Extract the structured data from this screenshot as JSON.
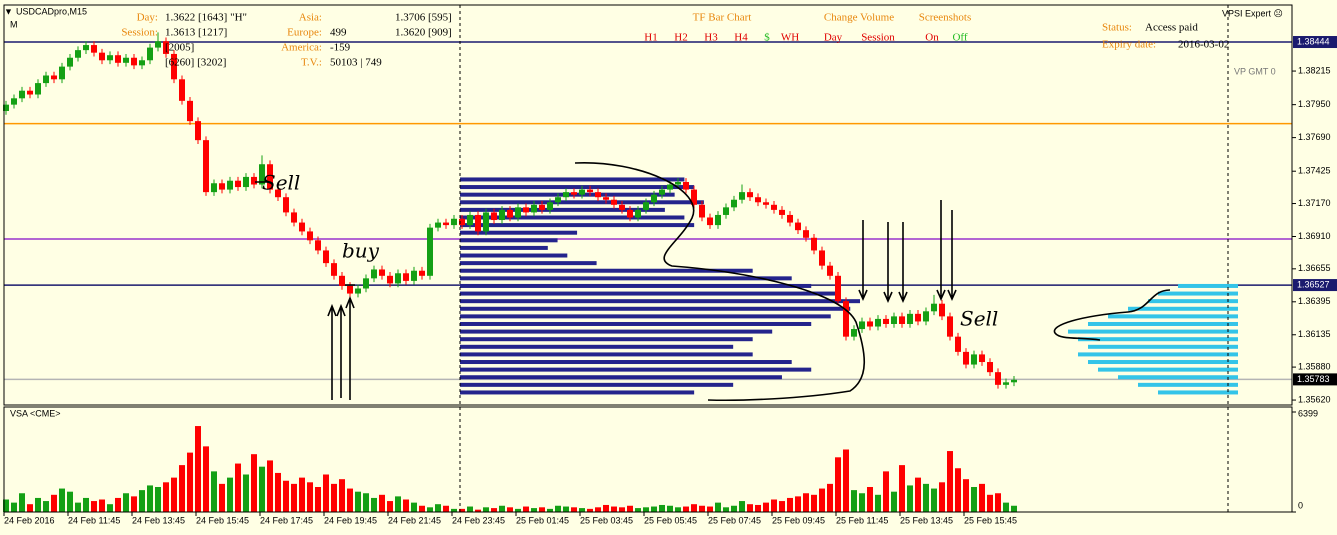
{
  "terminal": {
    "symbol": "USDCADpro,M15",
    "period_mark": "M",
    "expert": "VPSI Expert ☹",
    "vp_gmt": "VP GMT 0"
  },
  "stats": [
    {
      "label": "Day:",
      "value": "1.3622  [1643]  \"H\""
    },
    {
      "label": "Session:",
      "value": "1.3613  [1217]"
    },
    {
      "value": "[2005]"
    },
    {
      "value": "[6260]   [3202]"
    }
  ],
  "sessions": [
    {
      "label": "Asia:",
      "value": "1.3706 [595]"
    },
    {
      "label": "Europe:",
      "delta": "499",
      "value": "1.3620 [909]"
    },
    {
      "label": "America:",
      "delta": "-159"
    },
    {
      "label": "T.V.:",
      "delta": "50103 | 749"
    }
  ],
  "controls": {
    "tf_title": "TF Bar Chart",
    "tf_buttons": [
      "H1",
      "H2",
      "H3",
      "H4",
      "$",
      "WH"
    ],
    "volume_title": "Change Volume",
    "volume_buttons": [
      "Day",
      "Session"
    ],
    "shots_title": "Screenshots",
    "shots_buttons": [
      "On",
      "Off"
    ]
  },
  "license": {
    "status_label": "Status:",
    "status": "Access paid",
    "expiry_label": "Expiry date:",
    "expiry": "2016-03-02"
  },
  "annotations": [
    "Sell",
    "buy",
    "Sell"
  ],
  "chart_data": {
    "type": "candlestick",
    "title": "USDCADpro,M15",
    "categories": [
      "24 Feb 2016",
      null,
      null,
      null,
      null,
      null,
      null,
      null,
      "24 Feb 11:45",
      null,
      null,
      null,
      null,
      null,
      null,
      null,
      "24 Feb 13:45",
      null,
      null,
      null,
      null,
      null,
      null,
      null,
      "24 Feb 15:45",
      null,
      null,
      null,
      null,
      null,
      null,
      null,
      "24 Feb 17:45",
      null,
      null,
      null,
      null,
      null,
      null,
      null,
      "24 Feb 19:45",
      null,
      null,
      null,
      null,
      null,
      null,
      null,
      "24 Feb 21:45",
      null,
      null,
      null,
      null,
      null,
      null,
      null,
      "24 Feb 23:45",
      null,
      null,
      null,
      null,
      null,
      null,
      null,
      "25 Feb 01:45",
      null,
      null,
      null,
      null,
      null,
      null,
      null,
      "25 Feb 03:45",
      null,
      null,
      null,
      null,
      null,
      null,
      null,
      "25 Feb 05:45",
      null,
      null,
      null,
      null,
      null,
      null,
      null,
      "25 Feb 07:45",
      null,
      null,
      null,
      null,
      null,
      null,
      null,
      "25 Feb 09:45",
      null,
      null,
      null,
      null,
      null,
      null,
      null,
      "25 Feb 11:45",
      null,
      null,
      null,
      null,
      null,
      null,
      null,
      "25 Feb 13:45",
      null,
      null,
      null,
      null,
      null,
      null,
      null,
      "25 Feb 15:45",
      null,
      null,
      null,
      null,
      null,
      null
    ],
    "open": [
      1.379,
      1.3795,
      1.38,
      1.3806,
      1.3803,
      1.3812,
      1.3818,
      1.3815,
      1.3825,
      1.3832,
      1.3838,
      1.3842,
      1.3836,
      1.383,
      1.3834,
      1.3828,
      1.3832,
      1.3826,
      1.383,
      1.384,
      1.3845,
      1.3835,
      1.3815,
      1.3798,
      1.3782,
      1.3767,
      1.3726,
      1.3733,
      1.3728,
      1.3735,
      1.373,
      1.3738,
      1.3732,
      1.3748,
      1.3728,
      1.3722,
      1.371,
      1.3702,
      1.3695,
      1.3688,
      1.368,
      1.367,
      1.366,
      1.3652,
      1.3646,
      1.365,
      1.3658,
      1.3665,
      1.366,
      1.3654,
      1.3662,
      1.3656,
      1.3664,
      1.366,
      1.3698,
      1.3702,
      1.37,
      1.3705,
      1.37,
      1.3708,
      1.3695,
      1.371,
      1.3704,
      1.3712,
      1.3706,
      1.3714,
      1.371,
      1.3716,
      1.3712,
      1.3718,
      1.3722,
      1.3726,
      1.3724,
      1.3728,
      1.3726,
      1.3722,
      1.372,
      1.3716,
      1.3712,
      1.3706,
      1.3712,
      1.3718,
      1.3724,
      1.3728,
      1.3732,
      1.3734,
      1.3728,
      1.3716,
      1.3706,
      1.37,
      1.3708,
      1.3714,
      1.372,
      1.3726,
      1.3722,
      1.3718,
      1.3716,
      1.3712,
      1.3708,
      1.3702,
      1.3696,
      1.369,
      1.368,
      1.3668,
      1.366,
      1.364,
      1.3612,
      1.3618,
      1.3624,
      1.362,
      1.3626,
      1.3622,
      1.3628,
      1.3622,
      1.363,
      1.3624,
      1.3632,
      1.3638,
      1.3628,
      1.3612,
      1.36,
      1.359,
      1.3598,
      1.3592,
      1.3584,
      1.3574,
      1.3576
    ],
    "high": [
      1.3798,
      1.3803,
      1.3809,
      1.3809,
      1.3815,
      1.3821,
      1.3821,
      1.3828,
      1.3835,
      1.3841,
      1.3845,
      1.3845,
      1.3839,
      1.3837,
      1.3837,
      1.3835,
      1.3835,
      1.3833,
      1.3843,
      1.3852,
      1.3848,
      1.3838,
      1.3818,
      1.3801,
      1.3785,
      1.377,
      1.3736,
      1.3736,
      1.3738,
      1.3738,
      1.3741,
      1.3741,
      1.3755,
      1.3751,
      1.3731,
      1.3725,
      1.3713,
      1.3705,
      1.3698,
      1.3691,
      1.3683,
      1.3673,
      1.3663,
      1.3655,
      1.3653,
      1.3661,
      1.3668,
      1.3668,
      1.3663,
      1.3665,
      1.3665,
      1.3667,
      1.3667,
      1.3701,
      1.3705,
      1.3705,
      1.3708,
      1.3708,
      1.3711,
      1.3711,
      1.3713,
      1.3713,
      1.3715,
      1.3715,
      1.3717,
      1.3717,
      1.3719,
      1.3719,
      1.3721,
      1.3725,
      1.3729,
      1.3729,
      1.3731,
      1.3731,
      1.3729,
      1.3725,
      1.3723,
      1.3719,
      1.3715,
      1.3715,
      1.3721,
      1.3727,
      1.3731,
      1.3735,
      1.3737,
      1.3737,
      1.3731,
      1.3719,
      1.3709,
      1.3711,
      1.3717,
      1.3723,
      1.3732,
      1.3729,
      1.3725,
      1.3721,
      1.3719,
      1.3715,
      1.3711,
      1.3705,
      1.3699,
      1.3693,
      1.3683,
      1.3671,
      1.3663,
      1.3643,
      1.3621,
      1.3627,
      1.3627,
      1.3629,
      1.3629,
      1.3631,
      1.3631,
      1.3633,
      1.3633,
      1.3635,
      1.3645,
      1.3641,
      1.3631,
      1.3615,
      1.3603,
      1.3601,
      1.3601,
      1.3595,
      1.3587,
      1.3579,
      1.3581
    ],
    "low": [
      1.3787,
      1.3792,
      1.3797,
      1.38,
      1.38,
      1.3809,
      1.3812,
      1.3812,
      1.3822,
      1.3829,
      1.3835,
      1.3833,
      1.3827,
      1.3827,
      1.3825,
      1.3825,
      1.3823,
      1.3823,
      1.3827,
      1.3837,
      1.3832,
      1.3812,
      1.3795,
      1.3779,
      1.3764,
      1.3723,
      1.3723,
      1.3725,
      1.3725,
      1.3727,
      1.3727,
      1.3729,
      1.3729,
      1.3725,
      1.3719,
      1.3707,
      1.3699,
      1.3692,
      1.3685,
      1.3677,
      1.3667,
      1.3657,
      1.3649,
      1.3643,
      1.3643,
      1.3647,
      1.3655,
      1.3657,
      1.3651,
      1.3651,
      1.3653,
      1.3653,
      1.3657,
      1.3657,
      1.3695,
      1.3697,
      1.3697,
      1.3697,
      1.3697,
      1.3692,
      1.3692,
      1.3701,
      1.3701,
      1.3703,
      1.3703,
      1.3707,
      1.3707,
      1.3709,
      1.3709,
      1.3715,
      1.3719,
      1.3721,
      1.3721,
      1.3723,
      1.3719,
      1.3717,
      1.3713,
      1.3709,
      1.3703,
      1.3703,
      1.3709,
      1.3715,
      1.3721,
      1.3725,
      1.3729,
      1.3725,
      1.3713,
      1.3703,
      1.3697,
      1.3697,
      1.3705,
      1.3711,
      1.3717,
      1.3719,
      1.3715,
      1.3713,
      1.3709,
      1.3705,
      1.3699,
      1.3693,
      1.3687,
      1.3677,
      1.3665,
      1.3657,
      1.3637,
      1.3609,
      1.3609,
      1.3615,
      1.3617,
      1.3617,
      1.3619,
      1.3619,
      1.3619,
      1.3619,
      1.3621,
      1.3621,
      1.3629,
      1.3625,
      1.3609,
      1.3597,
      1.3587,
      1.3587,
      1.3589,
      1.3581,
      1.3571,
      1.3571,
      1.3573
    ],
    "close": [
      1.3795,
      1.38,
      1.3806,
      1.3803,
      1.3812,
      1.3818,
      1.3815,
      1.3825,
      1.3832,
      1.3838,
      1.3842,
      1.3836,
      1.383,
      1.3834,
      1.3828,
      1.3832,
      1.3826,
      1.383,
      1.384,
      1.3845,
      1.3835,
      1.3815,
      1.3798,
      1.3782,
      1.3767,
      1.3726,
      1.3733,
      1.3728,
      1.3735,
      1.373,
      1.3738,
      1.3732,
      1.3748,
      1.3728,
      1.3722,
      1.371,
      1.3702,
      1.3695,
      1.3688,
      1.368,
      1.367,
      1.366,
      1.3652,
      1.3646,
      1.365,
      1.3658,
      1.3665,
      1.366,
      1.3654,
      1.3662,
      1.3656,
      1.3664,
      1.366,
      1.3698,
      1.3702,
      1.37,
      1.3705,
      1.37,
      1.3708,
      1.3695,
      1.371,
      1.3704,
      1.3712,
      1.3706,
      1.3714,
      1.371,
      1.3716,
      1.3712,
      1.3718,
      1.3722,
      1.3726,
      1.3724,
      1.3728,
      1.3726,
      1.3722,
      1.372,
      1.3716,
      1.3712,
      1.3706,
      1.3712,
      1.3718,
      1.3724,
      1.3728,
      1.3732,
      1.3734,
      1.3728,
      1.3716,
      1.3706,
      1.37,
      1.3708,
      1.3714,
      1.372,
      1.3726,
      1.3722,
      1.3718,
      1.3716,
      1.3712,
      1.3708,
      1.3702,
      1.3696,
      1.369,
      1.368,
      1.3668,
      1.366,
      1.364,
      1.3612,
      1.3618,
      1.3624,
      1.362,
      1.3626,
      1.3622,
      1.3628,
      1.3622,
      1.363,
      1.3624,
      1.3632,
      1.3638,
      1.3628,
      1.3612,
      1.36,
      1.359,
      1.3598,
      1.3592,
      1.3584,
      1.3574,
      1.3576,
      1.3578
    ],
    "up_color": "#14a014",
    "down_color": "#ff0000",
    "ylim": [
      1.35581,
      1.38736
    ],
    "yticks": [
      1.38215,
      {
        "value": 1.3795,
        "label": "1.37950"
      },
      {
        "value": 1.3769,
        "label": "1.37690"
      },
      1.37425,
      {
        "value": 1.3717,
        "label": "1.37170"
      },
      {
        "value": 1.3691,
        "label": "1.36910"
      },
      1.36655,
      1.36395,
      1.36135,
      {
        "value": 1.3588,
        "label": "1.35880"
      },
      {
        "value": 1.3562,
        "label": "1.35620"
      }
    ],
    "price_tags": [
      1.38444,
      1.36527,
      1.35783
    ],
    "price_tag_colors": [
      "#1a1a6e",
      "#1a1a6e",
      "#000000"
    ],
    "levels": [
      {
        "value": 1.38444,
        "color": "#1a1a6e"
      },
      {
        "value": 1.378,
        "color": "#ff9900"
      },
      {
        "value": 1.3689,
        "color": "#9932cc"
      },
      {
        "value": 1.36527,
        "color": "#1a1a6e"
      },
      {
        "value": 1.35783,
        "color": "#b4b4b4"
      }
    ],
    "profiles": [
      {
        "color": "#24248c",
        "prices": [
          1.3736,
          1.373,
          1.3724,
          1.3718,
          1.3712,
          1.3706,
          1.37,
          1.3694,
          1.3688,
          1.3682,
          1.3676,
          1.367,
          1.3664,
          1.3658,
          1.3652,
          1.3646,
          1.364,
          1.3634,
          1.3628,
          1.3622,
          1.3616,
          1.361,
          1.3604,
          1.3598,
          1.3592,
          1.3586,
          1.358,
          1.3574,
          1.3568
        ],
        "volumes": [
          230,
          240,
          220,
          250,
          210,
          230,
          240,
          120,
          100,
          90,
          110,
          140,
          300,
          340,
          360,
          390,
          410,
          400,
          380,
          360,
          320,
          300,
          280,
          300,
          340,
          360,
          330,
          280,
          240
        ]
      },
      {
        "color": "#33c4e8",
        "prices": [
          1.3652,
          1.3646,
          1.364,
          1.3634,
          1.3628,
          1.3622,
          1.3616,
          1.361,
          1.3604,
          1.3598,
          1.3592,
          1.3586,
          1.358,
          1.3574,
          1.3568
        ],
        "volumes": [
          60,
          80,
          90,
          110,
          130,
          150,
          170,
          160,
          150,
          160,
          150,
          140,
          120,
          100,
          80
        ]
      }
    ],
    "volume": {
      "title": "VSA <CME>",
      "ylim": [
        0,
        6399
      ],
      "yticks": [
        6399,
        0
      ],
      "values": [
        800,
        600,
        1200,
        500,
        900,
        700,
        1100,
        1500,
        1300,
        600,
        900,
        700,
        800,
        500,
        900,
        1200,
        1000,
        1400,
        1700,
        1600,
        1900,
        2200,
        3000,
        3800,
        5500,
        4200,
        2600,
        1800,
        2200,
        3100,
        2400,
        3700,
        2900,
        3300,
        2500,
        2000,
        1800,
        2200,
        1900,
        1600,
        2400,
        1800,
        2100,
        1500,
        1300,
        1200,
        900,
        1100,
        700,
        1000,
        800,
        600,
        400,
        300,
        500,
        400,
        200,
        200,
        350,
        150,
        300,
        250,
        400,
        300,
        200,
        350,
        250,
        300,
        200,
        400,
        350,
        300,
        250,
        200,
        300,
        450,
        350,
        300,
        400,
        250,
        300,
        350,
        450,
        400,
        300,
        350,
        500,
        400,
        350,
        600,
        300,
        400,
        700,
        500,
        450,
        600,
        800,
        700,
        900,
        1000,
        1200,
        1100,
        1500,
        1800,
        3500,
        4000,
        1400,
        1200,
        1600,
        1100,
        2600,
        1300,
        3000,
        1700,
        2200,
        1800,
        1500,
        1900,
        3900,
        2800,
        2100,
        1600,
        1800,
        1100,
        1200,
        600,
        400
      ]
    }
  }
}
